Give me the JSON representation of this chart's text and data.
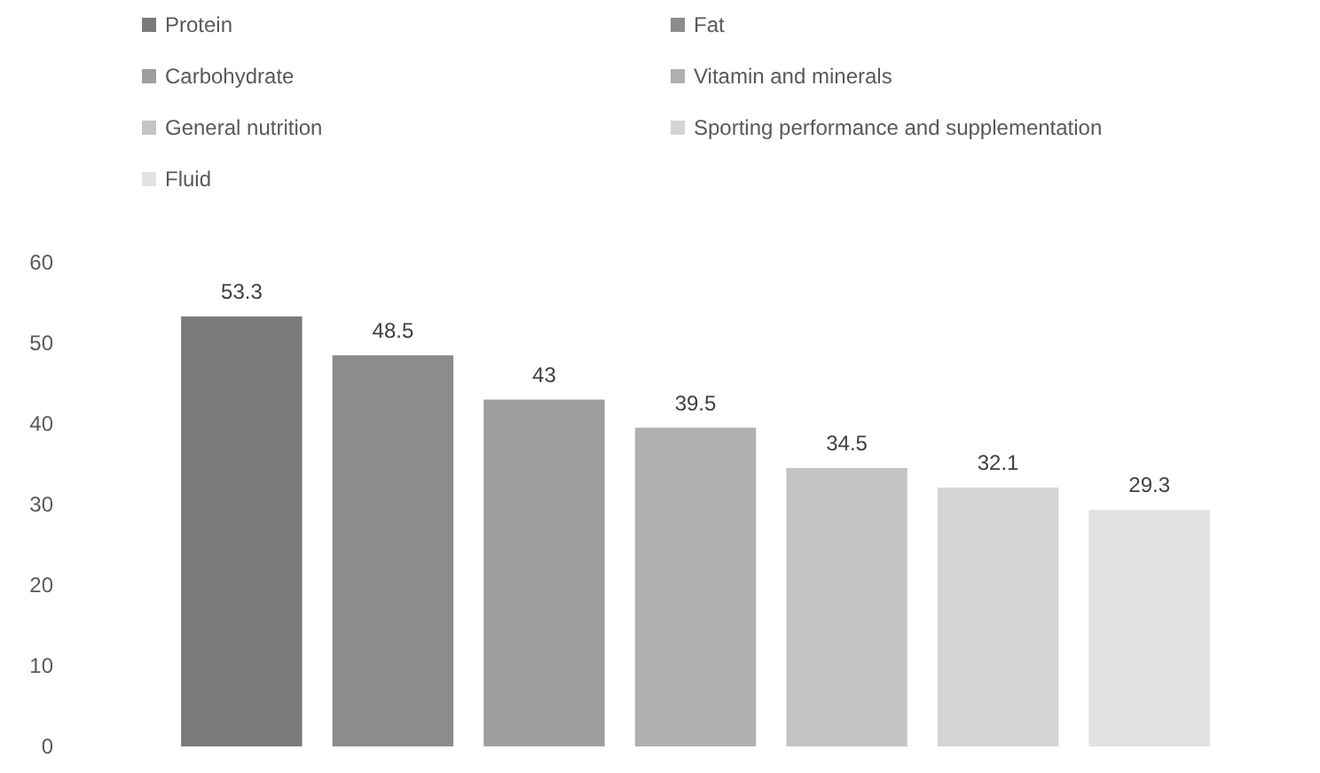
{
  "chart_data": {
    "type": "bar",
    "categories": [
      null
    ],
    "series": [
      {
        "name": "Protein",
        "color": "#7a7a7a",
        "values": [
          53.3
        ]
      },
      {
        "name": "Fat",
        "color": "#8c8c8c",
        "values": [
          48.5
        ]
      },
      {
        "name": "Carbohydrate",
        "color": "#9e9e9e",
        "values": [
          43
        ]
      },
      {
        "name": "Vitamin and minerals",
        "color": "#b0b0b0",
        "values": [
          39.5
        ]
      },
      {
        "name": "General nutrition",
        "color": "#c4c4c4",
        "values": [
          34.5
        ]
      },
      {
        "name": "Sporting performance and supplementation",
        "color": "#d4d4d4",
        "values": [
          32.1
        ]
      },
      {
        "name": "Fluid",
        "color": "#e2e2e2",
        "values": [
          29.3
        ]
      }
    ],
    "ylim": [
      0,
      60
    ],
    "yticks": [
      0,
      10,
      20,
      30,
      40,
      50,
      60
    ],
    "grid": false,
    "legend": "top",
    "data_labels": true
  }
}
